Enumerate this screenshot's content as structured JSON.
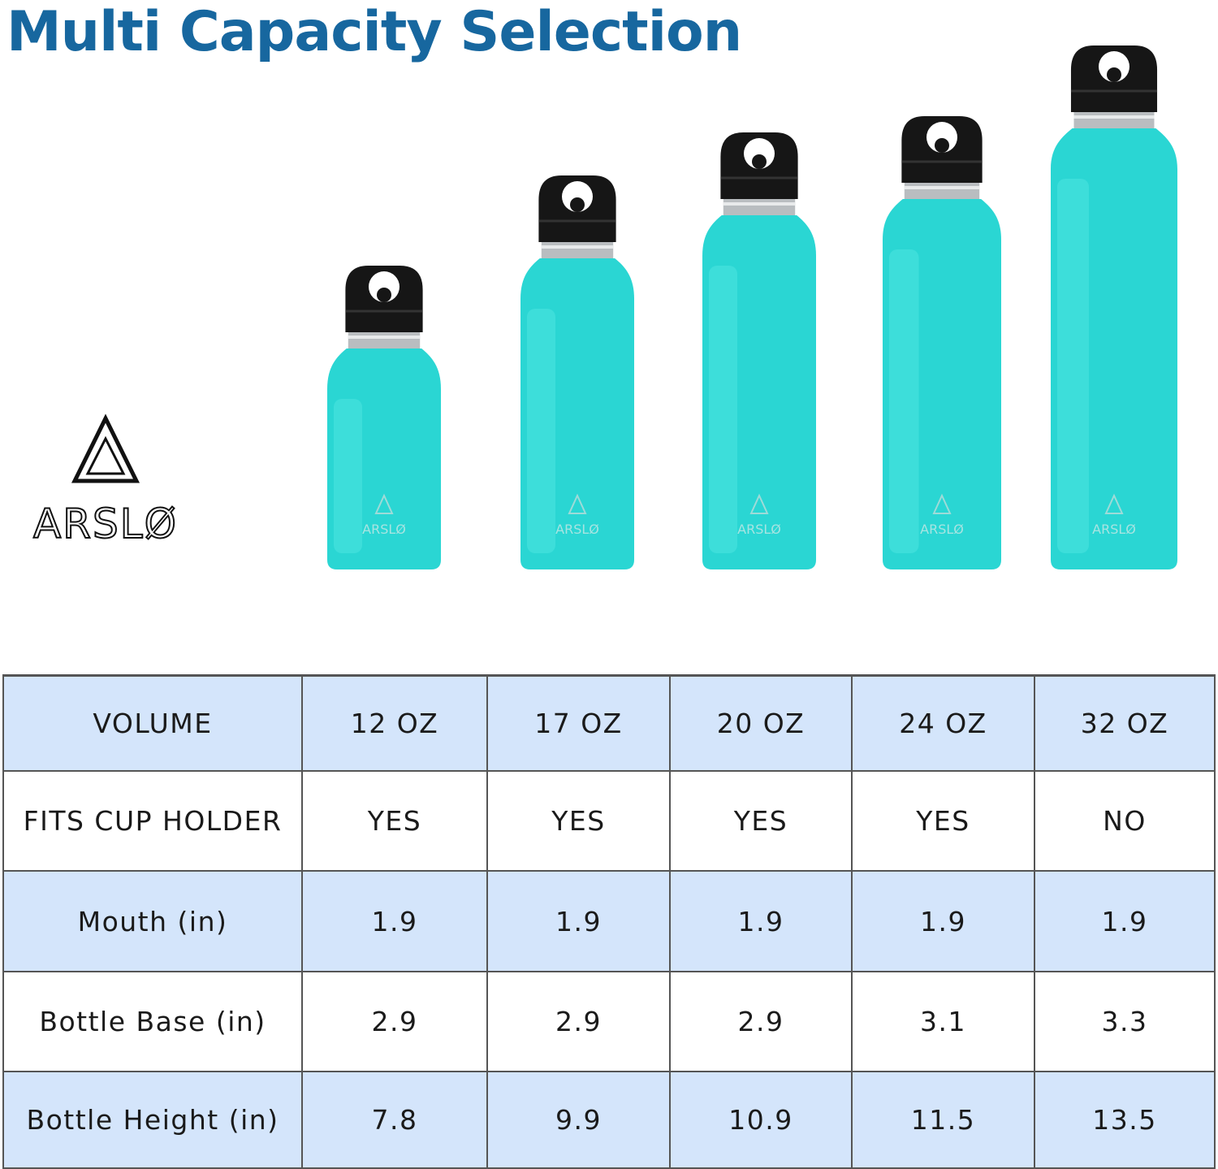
{
  "header": {
    "title": "Multi Capacity Selection"
  },
  "brand": {
    "logo": "ARSLØ"
  },
  "table": {
    "rows": [
      [
        "VOLUME",
        "12 OZ",
        "17 OZ",
        "20 OZ",
        "24 OZ",
        "32 OZ"
      ],
      [
        "FITS CUP HOLDER",
        "YES",
        "YES",
        "YES",
        "YES",
        "NO"
      ],
      [
        "Mouth (in)",
        "1.9",
        "1.9",
        "1.9",
        "1.9",
        "1.9"
      ],
      [
        "Bottle Base (in)",
        "2.9",
        "2.9",
        "2.9",
        "3.1",
        "3.3"
      ],
      [
        "Bottle Height (in)",
        "7.8",
        "9.9",
        "10.9",
        "11.5",
        "13.5"
      ]
    ]
  }
}
